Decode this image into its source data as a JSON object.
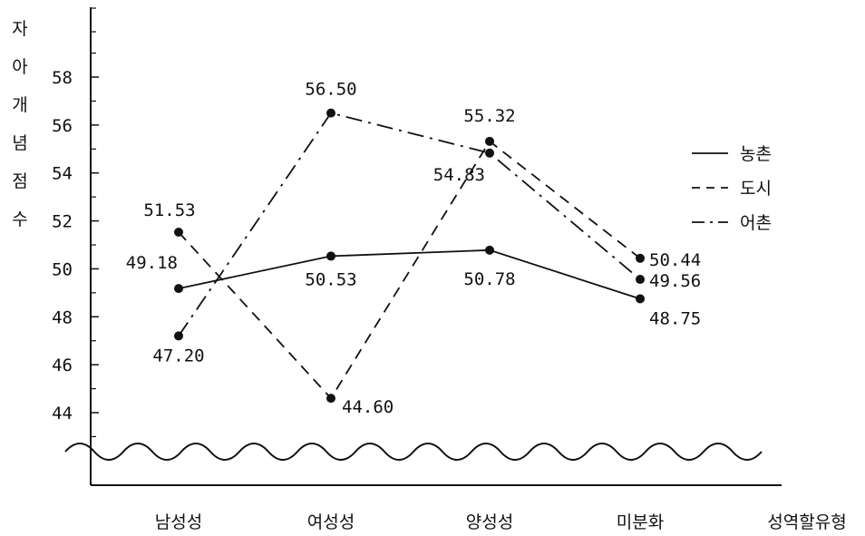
{
  "chart_data": {
    "type": "line",
    "ylabel": "자아개념점수",
    "xlabel": "성역할유형",
    "categories": [
      "남성성",
      "여성성",
      "양성성",
      "미분화"
    ],
    "ylim": [
      42,
      60
    ],
    "yticks": [
      44,
      46,
      48,
      50,
      52,
      54,
      56,
      58
    ],
    "grid": false,
    "legend_position": "right",
    "series": [
      {
        "name": "농촌",
        "line_style": "solid",
        "values": [
          49.18,
          50.53,
          50.78,
          48.75
        ],
        "labels": [
          "49.18",
          "50.53",
          "50.78",
          "48.75"
        ]
      },
      {
        "name": "도시",
        "line_style": "dashed",
        "values": [
          51.53,
          44.6,
          55.32,
          50.44
        ],
        "labels": [
          "51.53",
          "44.60",
          "55.32",
          "50.44"
        ]
      },
      {
        "name": "어촌",
        "line_style": "dash-dot",
        "values": [
          47.2,
          56.5,
          54.83,
          49.56
        ],
        "labels": [
          "47.20",
          "56.50",
          "54.83",
          "49.56"
        ]
      }
    ],
    "axis_break": true,
    "colors": {
      "ink": "#111111"
    }
  }
}
